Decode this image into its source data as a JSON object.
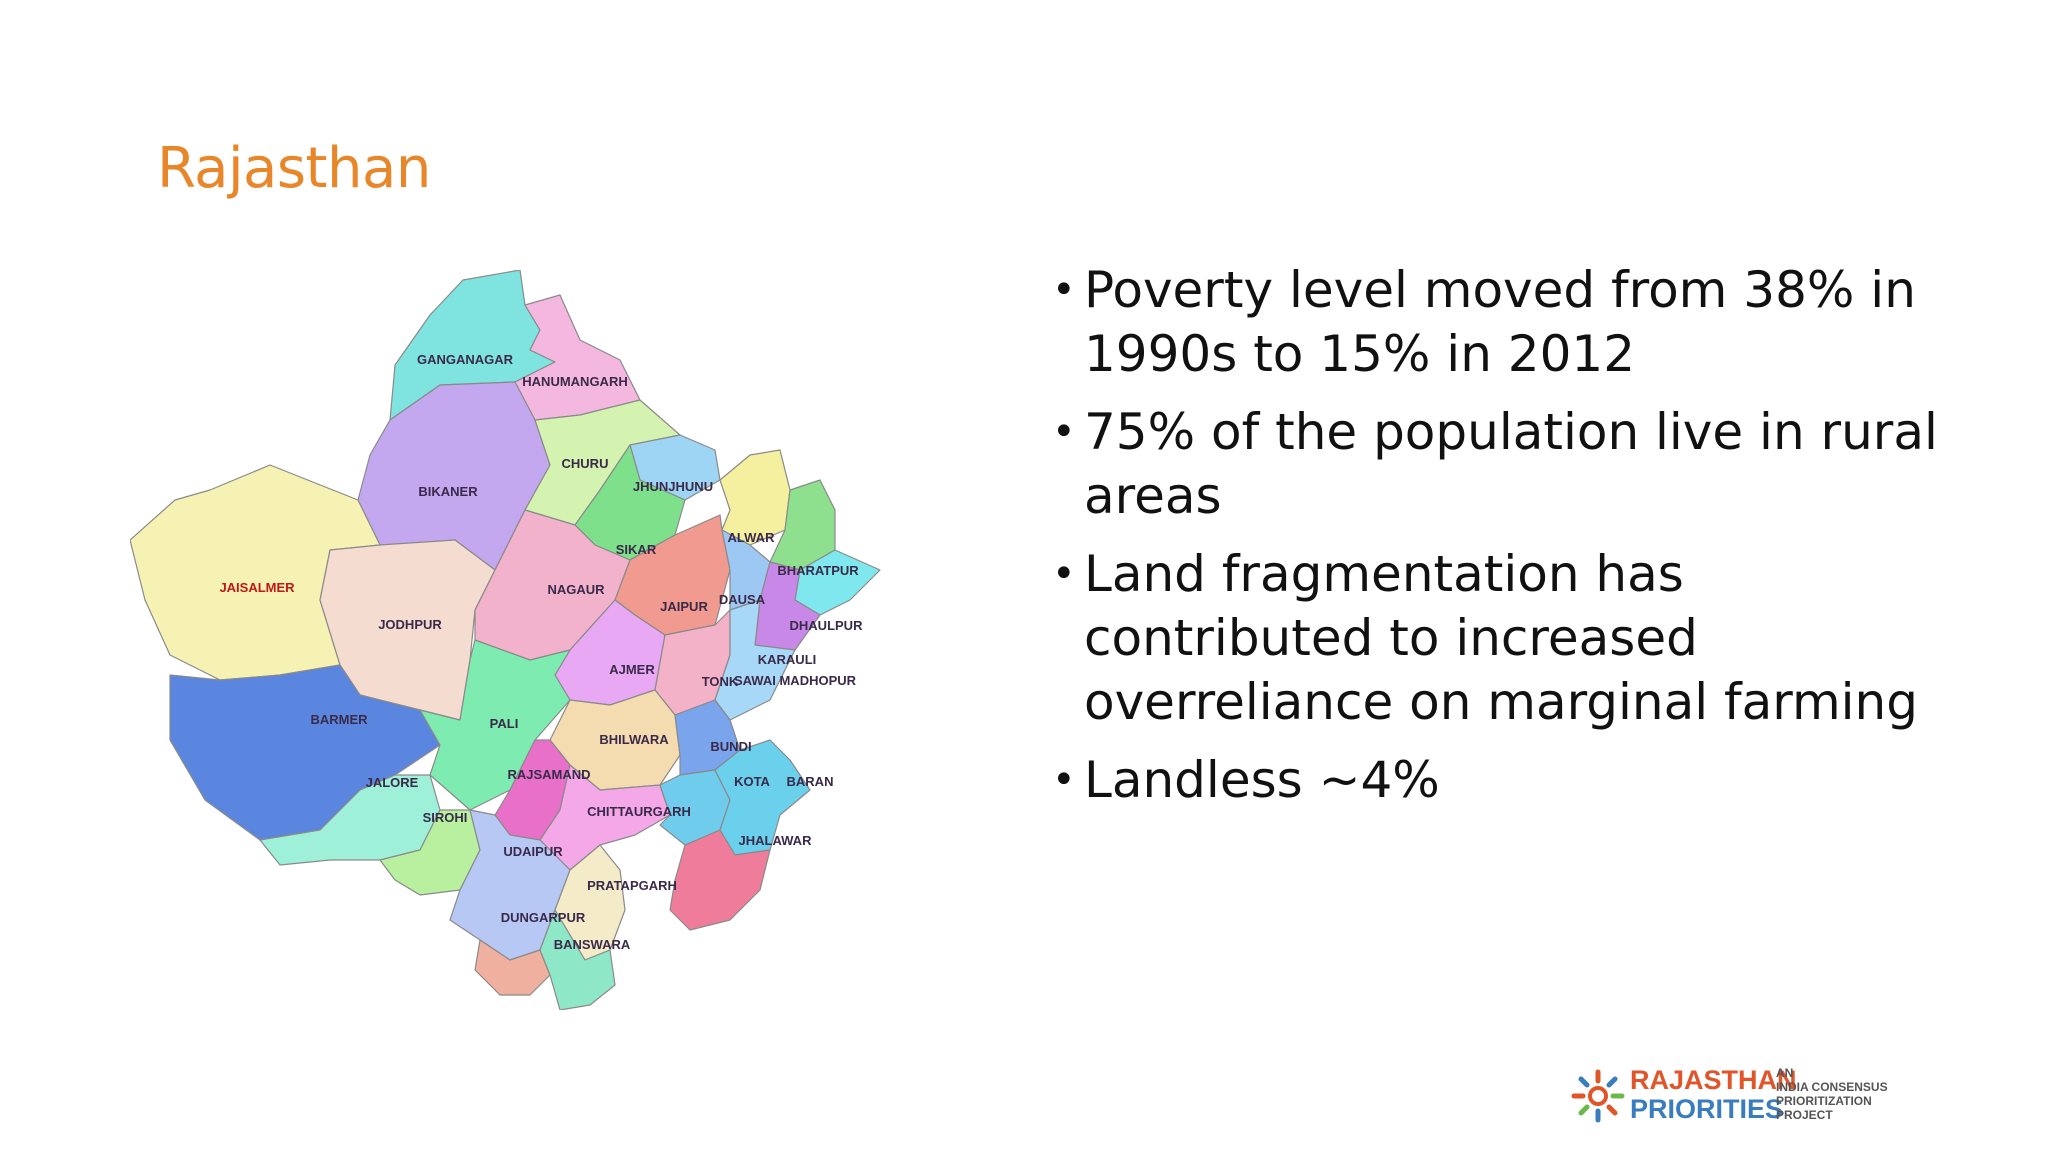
{
  "slide": {
    "title": "Rajasthan",
    "bullets": [
      "Poverty level moved from 38% in 1990s to 15% in 2012",
      "75% of the population live in rural areas",
      "Land fragmentation has contributed to increased overreliance on marginal farming",
      "Landless ~4%"
    ],
    "bullet_glyph": "•"
  },
  "map": {
    "districts": [
      {
        "name": "GANGANAGAR",
        "color": "#7FE3E0"
      },
      {
        "name": "HANUMANGARH",
        "color": "#F4B8E0"
      },
      {
        "name": "BIKANER",
        "color": "#C3A8F0"
      },
      {
        "name": "CHURU",
        "color": "#D4F2B0"
      },
      {
        "name": "JHUNJHUNU",
        "color": "#9ED4F4"
      },
      {
        "name": "SIKAR",
        "color": "#7EE08A"
      },
      {
        "name": "ALWAR",
        "color": "#F4F0A0"
      },
      {
        "name": "BHARATPUR",
        "color": "#8EE08E"
      },
      {
        "name": "JAISALMER",
        "color": "#F6F2B4"
      },
      {
        "name": "JODHPUR",
        "color": "#F4DCD0"
      },
      {
        "name": "NAGAUR",
        "color": "#F2B2CC"
      },
      {
        "name": "JAIPUR",
        "color": "#F09A90"
      },
      {
        "name": "DAUSA",
        "color": "#9EC8F4"
      },
      {
        "name": "DHAULPUR",
        "color": "#7EE8EE"
      },
      {
        "name": "KARAULI",
        "color": "#C888E8"
      },
      {
        "name": "AJMER",
        "color": "#E8A8F4"
      },
      {
        "name": "TONK",
        "color": "#F4B2C8"
      },
      {
        "name": "SAWAI MADHOPUR",
        "color": "#A8D8F8"
      },
      {
        "name": "BARMER",
        "color": "#5A86E0"
      },
      {
        "name": "PALI",
        "color": "#7EECB0"
      },
      {
        "name": "BHILWARA",
        "color": "#F4DCB0"
      },
      {
        "name": "BUNDI",
        "color": "#7AA4EC"
      },
      {
        "name": "JALORE",
        "color": "#9EF0D8"
      },
      {
        "name": "SIROHI",
        "color": "#B8F0A0"
      },
      {
        "name": "RAJSAMAND",
        "color": "#E870C8"
      },
      {
        "name": "CHITTAURGARH",
        "color": "#F4A8E8"
      },
      {
        "name": "KOTA",
        "color": "#70CCEC"
      },
      {
        "name": "BARAN",
        "color": "#6AD0EC"
      },
      {
        "name": "JHALAWAR",
        "color": "#F07C9C"
      },
      {
        "name": "UDAIPUR",
        "color": "#B8C8F4"
      },
      {
        "name": "PRATAPGARH",
        "color": "#F4ECC8"
      },
      {
        "name": "DUNGARPUR",
        "color": "#F0B0A0"
      },
      {
        "name": "BANSWARA",
        "color": "#8EE8C8"
      }
    ]
  },
  "logo": {
    "line1": "RAJASTHAN",
    "line2": "PRIORITIES",
    "sub": [
      "AN",
      "INDIA CONSENSUS",
      "PRIORITIZATION",
      "PROJECT"
    ],
    "colors": {
      "line1": "#E0552A",
      "line2": "#3A7DBF"
    }
  },
  "colors": {
    "title": "#E8862A",
    "text": "#111111"
  }
}
